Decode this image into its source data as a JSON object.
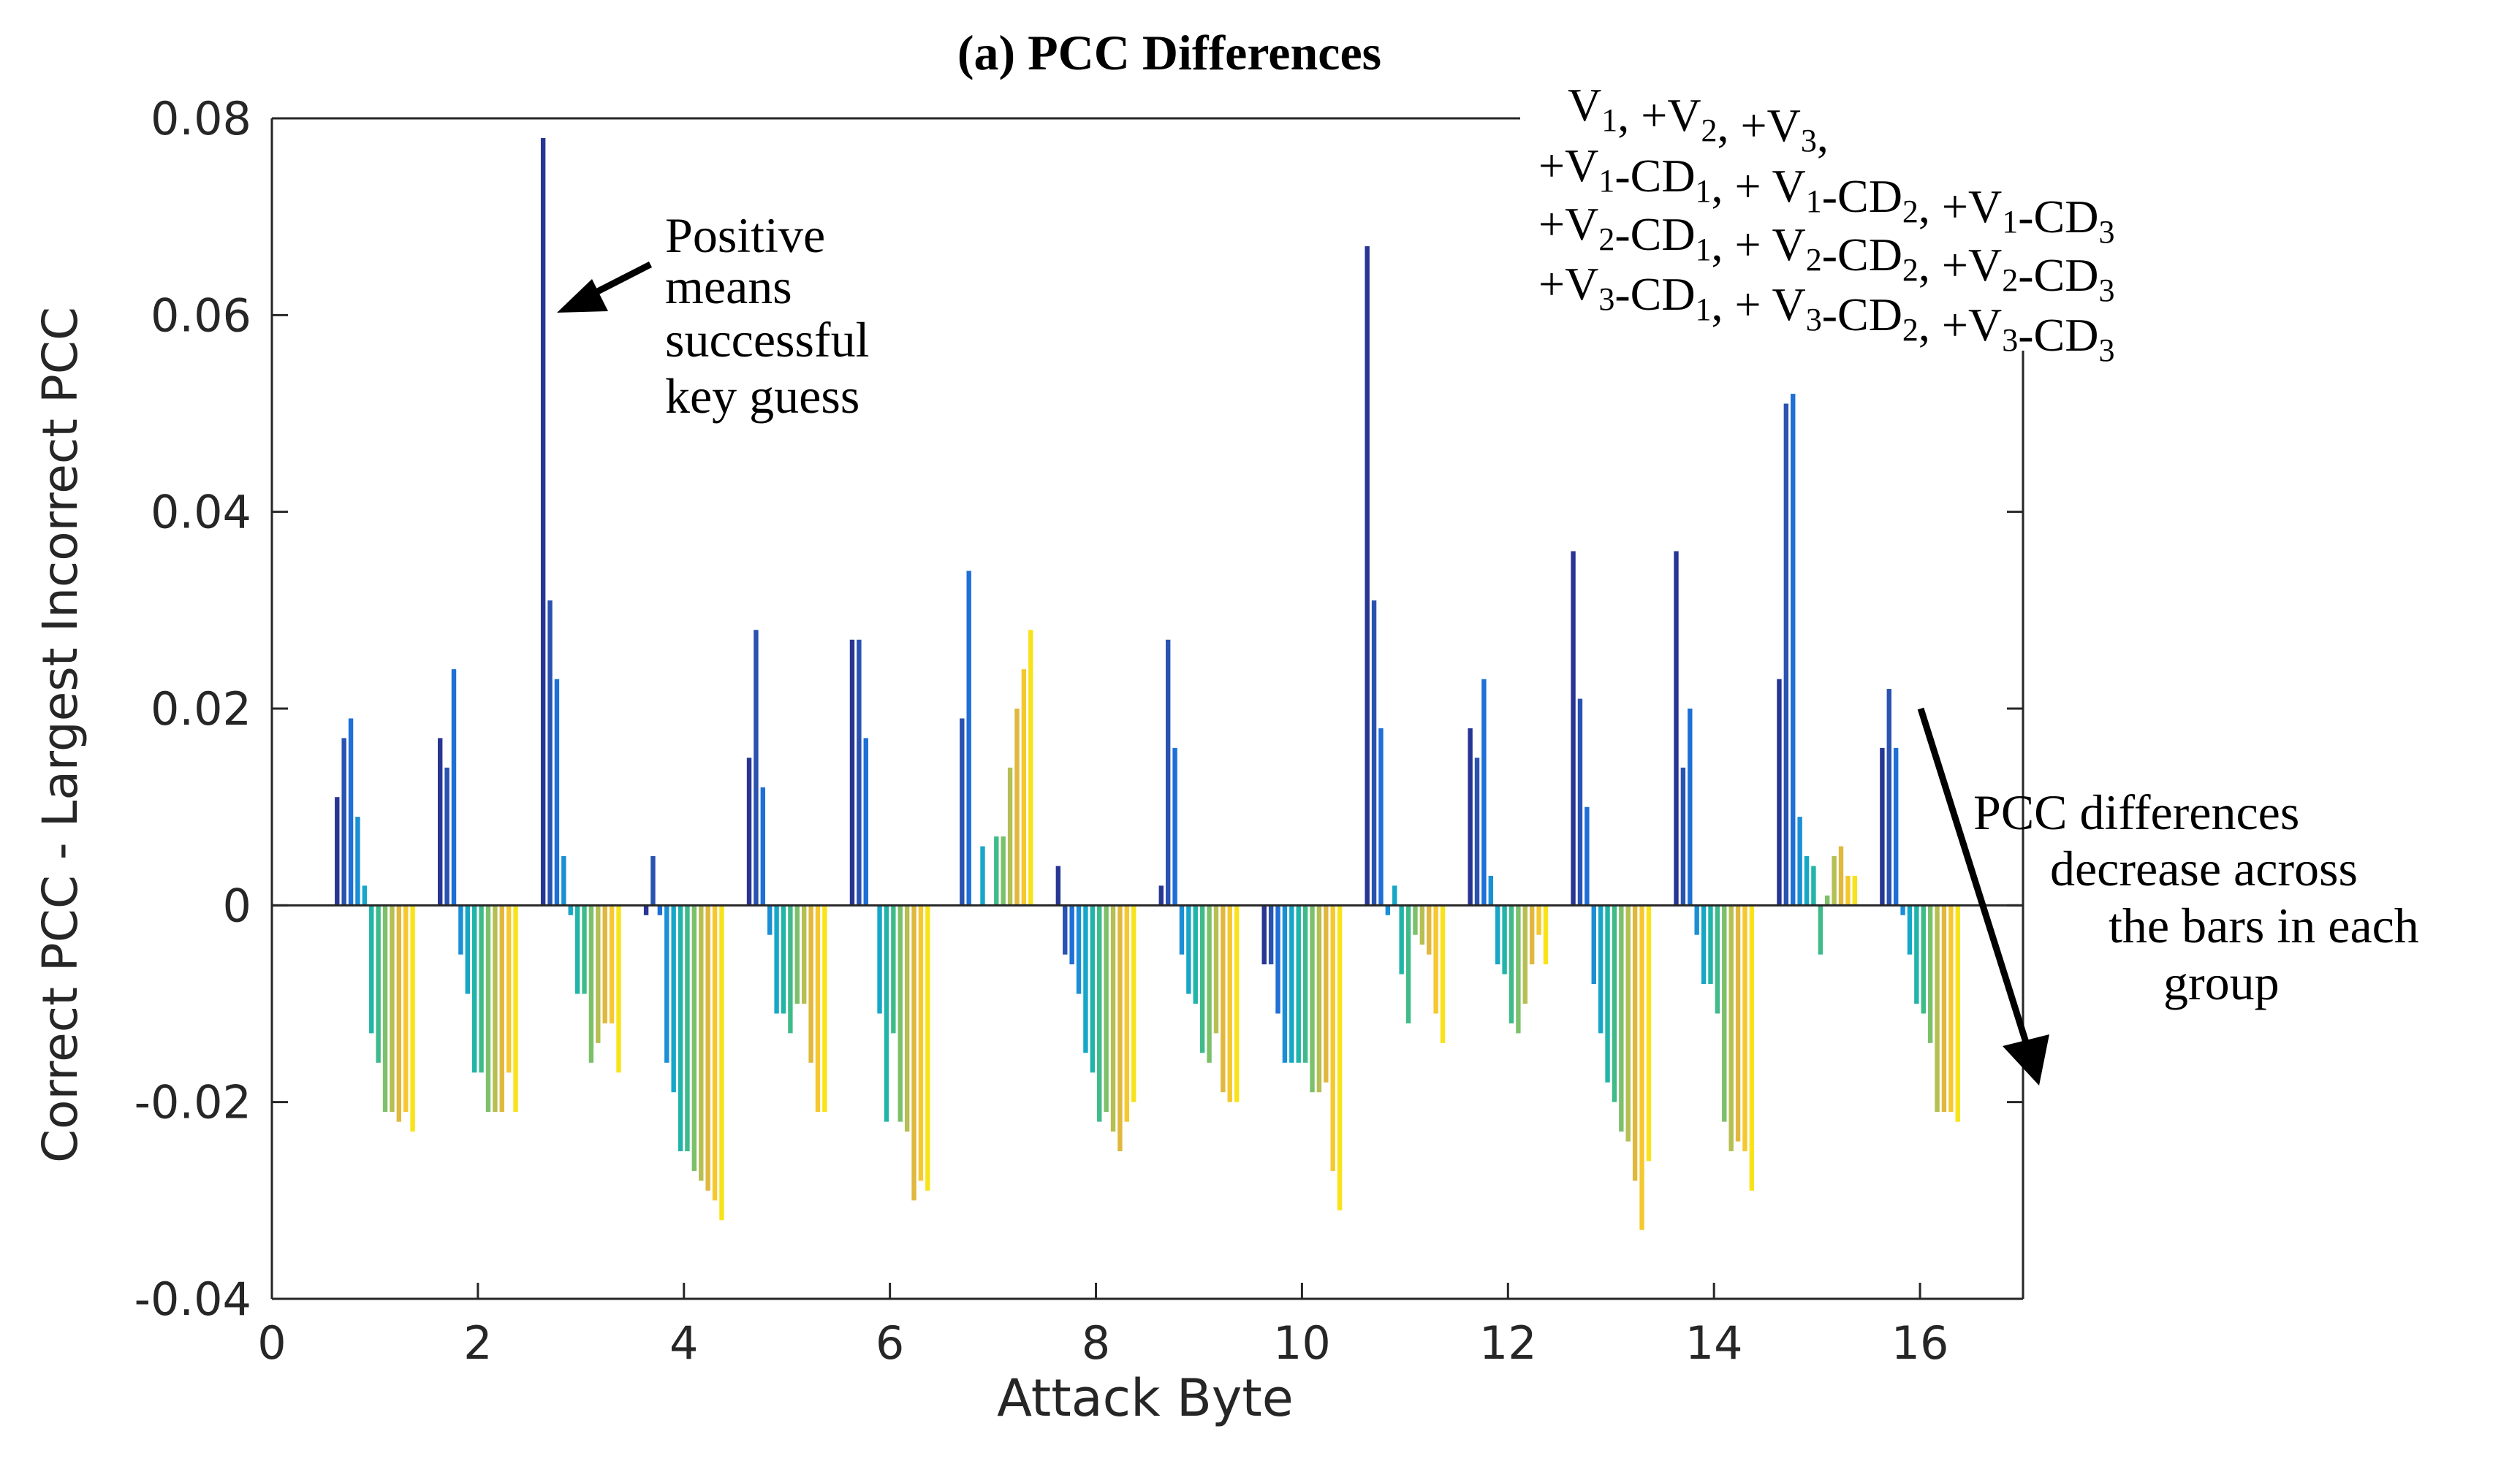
{
  "chart_data": {
    "type": "bar",
    "title": "(a) PCC Differences",
    "xlabel": "Attack Byte",
    "ylabel": "Correct PCC - Largest Incorrect PCC",
    "xlim": [
      0,
      17
    ],
    "ylim": [
      -0.04,
      0.08
    ],
    "xticks": [
      0,
      2,
      4,
      6,
      8,
      10,
      12,
      14,
      16
    ],
    "xtick_labels": [
      "0",
      "2",
      "4",
      "6",
      "8",
      "10",
      "12",
      "14",
      "16"
    ],
    "yticks": [
      -0.04,
      -0.02,
      0,
      0.02,
      0.04,
      0.06,
      0.08
    ],
    "ytick_labels": [
      "-0.04",
      "-0.02",
      "0",
      "0.02",
      "0.04",
      "0.06",
      "0.08"
    ],
    "categories": [
      "1",
      "2",
      "3",
      "4",
      "5",
      "6",
      "7",
      "8",
      "9",
      "10",
      "11",
      "12",
      "13",
      "14",
      "15",
      "16"
    ],
    "series_order": [
      "V1",
      "V2",
      "V3",
      "V1-CD1",
      "V1-CD2",
      "V1-CD3",
      "V2-CD1",
      "V2-CD2",
      "V2-CD3",
      "V3-CD1",
      "V3-CD2",
      "V3-CD3"
    ],
    "series_colors": [
      "#283593",
      "#2a52b0",
      "#1e6fd6",
      "#1a8fd6",
      "#16a7c8",
      "#20b5a8",
      "#3fbb8a",
      "#7cc06a",
      "#b5bf52",
      "#e0b83e",
      "#f5c830",
      "#f8e31a"
    ],
    "groups": [
      [
        0.011,
        0.017,
        0.019,
        0.009,
        0.002,
        -0.013,
        -0.016,
        -0.021,
        -0.021,
        -0.022,
        -0.021,
        -0.023
      ],
      [
        0.017,
        0.014,
        0.024,
        -0.005,
        -0.009,
        -0.017,
        -0.017,
        -0.021,
        -0.021,
        -0.021,
        -0.017,
        -0.021
      ],
      [
        0.078,
        0.031,
        0.023,
        0.005,
        -0.001,
        -0.009,
        -0.009,
        -0.016,
        -0.014,
        -0.012,
        -0.012,
        -0.017
      ],
      [
        -0.001,
        0.005,
        -0.001,
        -0.016,
        -0.019,
        -0.025,
        -0.025,
        -0.027,
        -0.028,
        -0.029,
        -0.03,
        -0.032
      ],
      [
        0.015,
        0.028,
        0.012,
        -0.003,
        -0.011,
        -0.011,
        -0.013,
        -0.01,
        -0.01,
        -0.016,
        -0.021,
        -0.021
      ],
      [
        0.027,
        0.027,
        0.017,
        0.0,
        -0.011,
        -0.022,
        -0.013,
        -0.022,
        -0.023,
        -0.03,
        -0.028,
        -0.029
      ],
      [
        0.0,
        0.019,
        0.034,
        0.0,
        0.006,
        0.0,
        0.007,
        0.007,
        0.014,
        0.02,
        0.024,
        0.028
      ],
      [
        0.004,
        -0.005,
        -0.006,
        -0.009,
        -0.015,
        -0.017,
        -0.022,
        -0.021,
        -0.023,
        -0.025,
        -0.022,
        -0.02
      ],
      [
        0.002,
        0.027,
        0.016,
        -0.005,
        -0.009,
        -0.01,
        -0.015,
        -0.016,
        -0.013,
        -0.019,
        -0.02,
        -0.02
      ],
      [
        -0.006,
        -0.006,
        -0.011,
        -0.016,
        -0.016,
        -0.016,
        -0.016,
        -0.019,
        -0.019,
        -0.018,
        -0.027,
        -0.031
      ],
      [
        0.067,
        0.031,
        0.018,
        -0.001,
        0.002,
        -0.007,
        -0.012,
        -0.003,
        -0.004,
        -0.005,
        -0.011,
        -0.014
      ],
      [
        0.018,
        0.015,
        0.023,
        0.003,
        -0.006,
        -0.007,
        -0.012,
        -0.013,
        -0.01,
        -0.006,
        -0.003,
        -0.006
      ],
      [
        0.036,
        0.021,
        0.01,
        -0.008,
        -0.013,
        -0.018,
        -0.02,
        -0.023,
        -0.024,
        -0.028,
        -0.033,
        -0.026
      ],
      [
        0.036,
        0.014,
        0.02,
        -0.003,
        -0.008,
        -0.008,
        -0.011,
        -0.022,
        -0.025,
        -0.024,
        -0.025,
        -0.029
      ],
      [
        0.023,
        0.051,
        0.052,
        0.009,
        0.005,
        0.004,
        -0.005,
        0.001,
        0.005,
        0.006,
        0.003,
        0.003
      ],
      [
        0.016,
        0.022,
        0.016,
        -0.001,
        -0.005,
        -0.01,
        -0.011,
        -0.014,
        -0.021,
        -0.021,
        -0.021,
        -0.022
      ]
    ],
    "annotations": {
      "positive": [
        "Positive",
        "means",
        "successful",
        "key guess"
      ],
      "decrease": [
        "PCC differences",
        "decrease across",
        "the bars in each",
        "group"
      ]
    },
    "legend_lines": [
      {
        "parts": [
          [
            "t",
            "V"
          ],
          [
            "s",
            "1"
          ],
          [
            "t",
            ", +V"
          ],
          [
            "s",
            "2"
          ],
          [
            "t",
            ", +V"
          ],
          [
            "s",
            "3"
          ],
          [
            "t",
            ","
          ]
        ]
      },
      {
        "parts": [
          [
            "t",
            "+V"
          ],
          [
            "s",
            "1"
          ],
          [
            "t",
            "-CD"
          ],
          [
            "s",
            "1"
          ],
          [
            "t",
            ", + V"
          ],
          [
            "s",
            "1"
          ],
          [
            "t",
            "-CD"
          ],
          [
            "s",
            "2"
          ],
          [
            "t",
            ", +V"
          ],
          [
            "s",
            "1"
          ],
          [
            "t",
            "-CD"
          ],
          [
            "s",
            "3"
          ]
        ]
      },
      {
        "parts": [
          [
            "t",
            "+V"
          ],
          [
            "s",
            "2"
          ],
          [
            "t",
            "-CD"
          ],
          [
            "s",
            "1"
          ],
          [
            "t",
            ", + V"
          ],
          [
            "s",
            "2"
          ],
          [
            "t",
            "-CD"
          ],
          [
            "s",
            "2"
          ],
          [
            "t",
            ", +V"
          ],
          [
            "s",
            "2"
          ],
          [
            "t",
            "-CD"
          ],
          [
            "s",
            "3"
          ]
        ]
      },
      {
        "parts": [
          [
            "t",
            "+V"
          ],
          [
            "s",
            "3"
          ],
          [
            "t",
            "-CD"
          ],
          [
            "s",
            "1"
          ],
          [
            "t",
            ", + V"
          ],
          [
            "s",
            "3"
          ],
          [
            "t",
            "-CD"
          ],
          [
            "s",
            "2"
          ],
          [
            "t",
            ", +V"
          ],
          [
            "s",
            "3"
          ],
          [
            "t",
            "-CD"
          ],
          [
            "s",
            "3"
          ]
        ]
      }
    ]
  }
}
